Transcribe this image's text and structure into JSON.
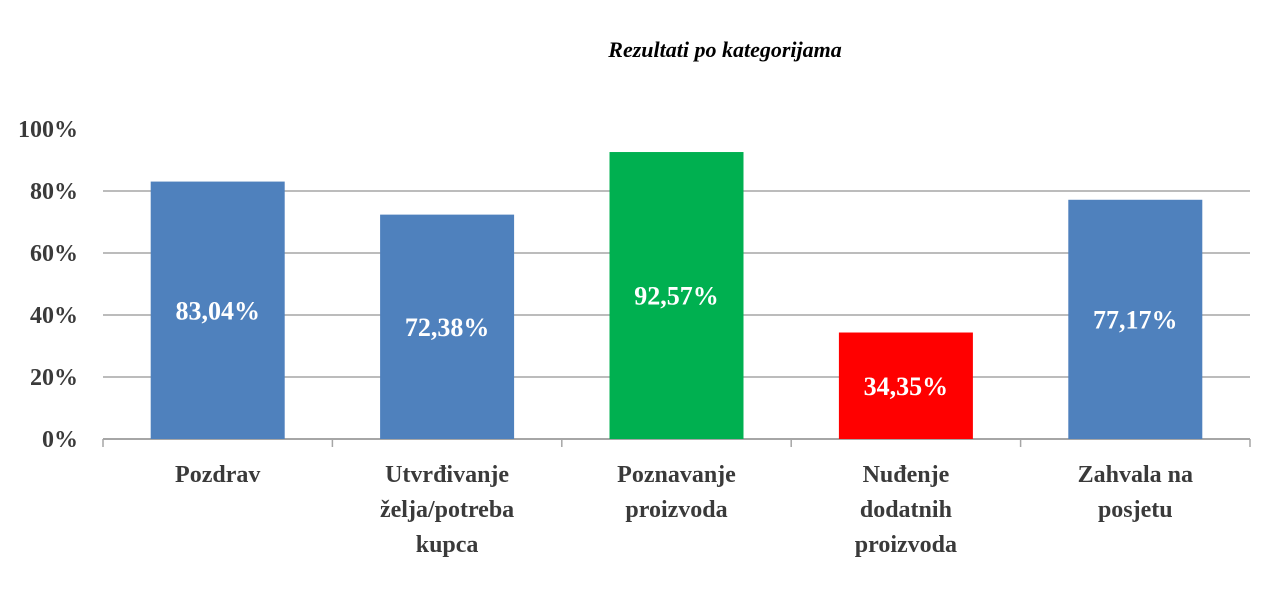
{
  "chart_data": {
    "type": "bar",
    "title": "Rezultati po kategorijama",
    "categories": [
      [
        "Pozdrav"
      ],
      [
        "Utvrđivanje",
        "želja/potreba",
        "kupca"
      ],
      [
        "Poznavanje",
        "proizvoda"
      ],
      [
        "Nuđenje",
        "dodatnih",
        "proizvoda"
      ],
      [
        "Zahvala na",
        "posjetu"
      ]
    ],
    "values": [
      83.04,
      72.38,
      92.57,
      34.35,
      77.17
    ],
    "data_labels": [
      "83,04%",
      "72,38%",
      "92,57%",
      "34,35%",
      "77,17%"
    ],
    "bar_colors": [
      "#4f81bd",
      "#4f81bd",
      "#00b050",
      "#ff0000",
      "#4f81bd"
    ],
    "yticks": [
      "0%",
      "20%",
      "40%",
      "60%",
      "80%",
      "100%"
    ],
    "ylim": [
      0,
      100
    ],
    "grid": true,
    "grid_color": "#a6a6a6",
    "xlabel": "",
    "ylabel": ""
  }
}
